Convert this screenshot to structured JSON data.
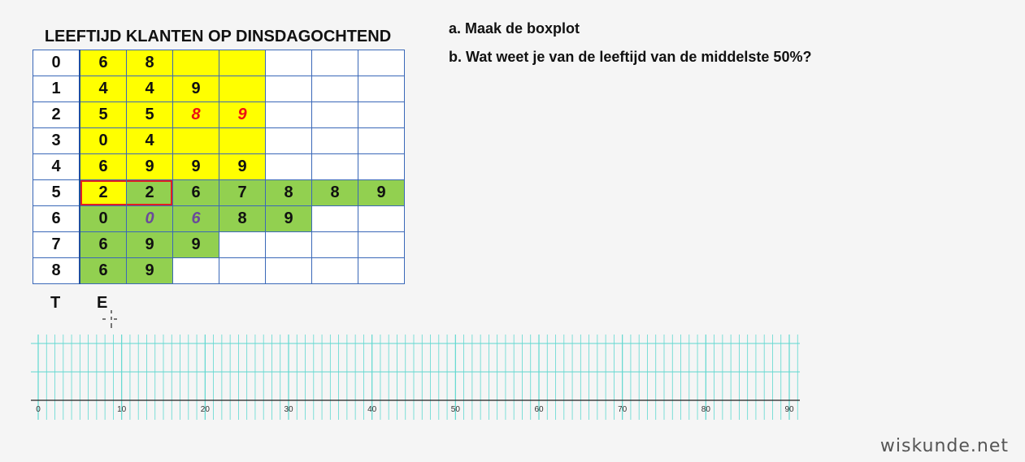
{
  "title": "LEEFTIJD KLANTEN OP DINSDAGOCHTEND",
  "questions": {
    "a": "a. Maak de boxplot",
    "b": "b. Wat weet je van de leeftijd van de middelste 50%?"
  },
  "stem_leaf": {
    "rows": [
      {
        "stem": "0",
        "leaves": [
          "6",
          "8"
        ]
      },
      {
        "stem": "1",
        "leaves": [
          "4",
          "4",
          "9"
        ]
      },
      {
        "stem": "2",
        "leaves": [
          "5",
          "5",
          "8",
          "9"
        ]
      },
      {
        "stem": "3",
        "leaves": [
          "0",
          "4"
        ]
      },
      {
        "stem": "4",
        "leaves": [
          "6",
          "9",
          "9",
          "9"
        ]
      },
      {
        "stem": "5",
        "leaves": [
          "2",
          "2",
          "6",
          "7",
          "8",
          "8",
          "9"
        ]
      },
      {
        "stem": "6",
        "leaves": [
          "0",
          "0",
          "6",
          "8",
          "9"
        ]
      },
      {
        "stem": "7",
        "leaves": [
          "6",
          "9",
          "9"
        ]
      },
      {
        "stem": "8",
        "leaves": [
          "6",
          "9"
        ]
      }
    ],
    "colors": {
      "yellow": "#ffff00",
      "green": "#92d050",
      "red_text": "#ee1111",
      "purple_text": "#6a4a9a",
      "outline": "#e02020"
    },
    "footer": {
      "stem_label": "T",
      "leaf_label": "E"
    }
  },
  "axis": {
    "min": 0,
    "max": 90,
    "labels": [
      "0",
      "10",
      "20",
      "30",
      "40",
      "50",
      "60",
      "70",
      "80",
      "90"
    ],
    "minor_step": 1,
    "grid_color": "#5fd8d0"
  },
  "brand": "wiskunde.net"
}
